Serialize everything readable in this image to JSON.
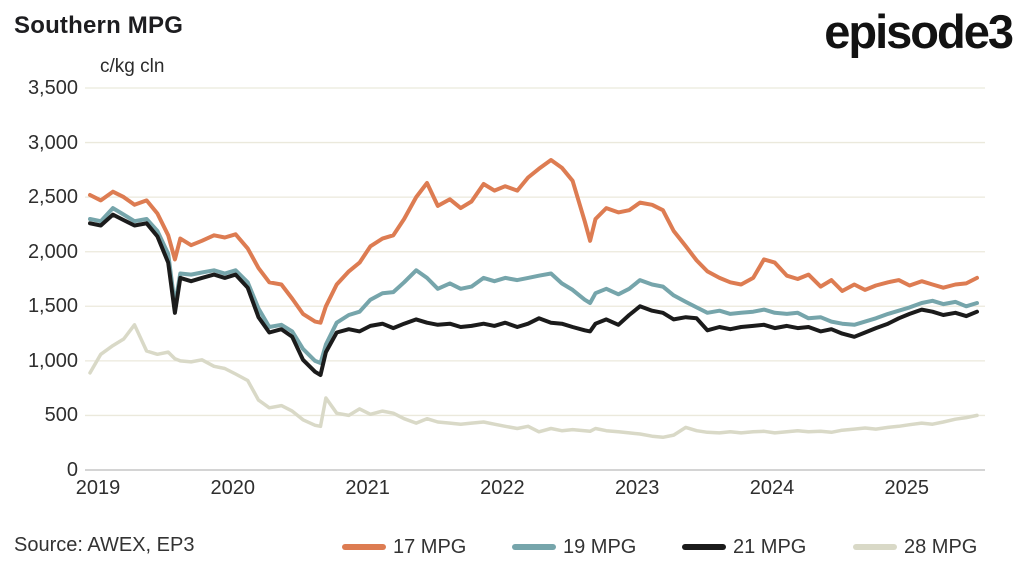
{
  "header": {
    "title": "Southern MPG",
    "logo": "episode3",
    "unit_label": "c/kg cln"
  },
  "footer": {
    "source": "Source: AWEX, EP3"
  },
  "colors": {
    "grid": "#ebe9dc",
    "axis": "#c6c6c6",
    "series_17": "#dd7c52",
    "series_19": "#76a5ab",
    "series_21": "#1b1b1b",
    "series_28": "#d9d9c7"
  },
  "chart_data": {
    "type": "line",
    "title": "Southern MPG",
    "ylabel": "c/kg cln",
    "xlabel": "",
    "ylim": [
      0,
      3500
    ],
    "xlim": [
      2018.95,
      2025.65
    ],
    "grid": "horizontal",
    "legend_position": "bottom",
    "yticks": [
      0,
      500,
      1000,
      1500,
      2000,
      2500,
      3000,
      3500
    ],
    "ytick_labels": [
      "0",
      "500",
      "1,000",
      "1,500",
      "2,000",
      "2,500",
      "3,000",
      "3,500"
    ],
    "xticks": [
      2019,
      2020,
      2021,
      2022,
      2023,
      2024,
      2025
    ],
    "xtick_labels": [
      "2019",
      "2020",
      "2021",
      "2022",
      "2023",
      "2024",
      "2025"
    ],
    "x": [
      2019.0,
      2019.08,
      2019.17,
      2019.25,
      2019.33,
      2019.42,
      2019.5,
      2019.58,
      2019.63,
      2019.67,
      2019.75,
      2019.83,
      2019.92,
      2020.0,
      2020.08,
      2020.17,
      2020.25,
      2020.33,
      2020.42,
      2020.5,
      2020.58,
      2020.67,
      2020.71,
      2020.75,
      2020.83,
      2020.92,
      2021.0,
      2021.08,
      2021.17,
      2021.25,
      2021.33,
      2021.42,
      2021.5,
      2021.58,
      2021.67,
      2021.75,
      2021.83,
      2021.92,
      2022.0,
      2022.08,
      2022.17,
      2022.25,
      2022.33,
      2022.42,
      2022.5,
      2022.58,
      2022.67,
      2022.71,
      2022.75,
      2022.83,
      2022.92,
      2023.0,
      2023.08,
      2023.17,
      2023.25,
      2023.33,
      2023.42,
      2023.5,
      2023.58,
      2023.67,
      2023.75,
      2023.83,
      2023.92,
      2024.0,
      2024.08,
      2024.17,
      2024.25,
      2024.33,
      2024.42,
      2024.5,
      2024.58,
      2024.67,
      2024.75,
      2024.83,
      2024.92,
      2025.0,
      2025.08,
      2025.17,
      2025.25,
      2025.33,
      2025.42,
      2025.5,
      2025.58
    ],
    "series": [
      {
        "name": "17 MPG",
        "color": "#dd7c52",
        "stroke_width": 4,
        "values": [
          2520,
          2470,
          2550,
          2500,
          2430,
          2470,
          2350,
          2150,
          1930,
          2120,
          2060,
          2100,
          2150,
          2130,
          2160,
          2030,
          1850,
          1720,
          1700,
          1570,
          1430,
          1360,
          1350,
          1500,
          1700,
          1820,
          1900,
          2050,
          2120,
          2150,
          2300,
          2500,
          2630,
          2420,
          2480,
          2400,
          2460,
          2620,
          2560,
          2600,
          2560,
          2680,
          2760,
          2840,
          2770,
          2650,
          2280,
          2100,
          2300,
          2400,
          2360,
          2380,
          2450,
          2430,
          2380,
          2190,
          2050,
          1920,
          1820,
          1760,
          1720,
          1700,
          1760,
          1930,
          1900,
          1780,
          1750,
          1790,
          1680,
          1740,
          1640,
          1700,
          1650,
          1690,
          1720,
          1740,
          1690,
          1730,
          1700,
          1670,
          1700,
          1710,
          1760
        ]
      },
      {
        "name": "19 MPG",
        "color": "#76a5ab",
        "stroke_width": 4,
        "values": [
          2300,
          2280,
          2400,
          2340,
          2280,
          2300,
          2190,
          1980,
          1510,
          1800,
          1790,
          1810,
          1830,
          1800,
          1830,
          1720,
          1480,
          1310,
          1330,
          1270,
          1110,
          1000,
          980,
          1150,
          1350,
          1420,
          1450,
          1560,
          1620,
          1630,
          1720,
          1830,
          1760,
          1660,
          1710,
          1660,
          1680,
          1760,
          1730,
          1760,
          1740,
          1760,
          1780,
          1800,
          1710,
          1650,
          1560,
          1530,
          1620,
          1660,
          1610,
          1660,
          1740,
          1700,
          1680,
          1600,
          1540,
          1490,
          1440,
          1460,
          1430,
          1440,
          1450,
          1470,
          1440,
          1430,
          1440,
          1390,
          1400,
          1360,
          1340,
          1330,
          1360,
          1390,
          1430,
          1460,
          1490,
          1530,
          1550,
          1520,
          1540,
          1500,
          1530
        ]
      },
      {
        "name": "21 MPG",
        "color": "#1b1b1b",
        "stroke_width": 4,
        "values": [
          2260,
          2240,
          2340,
          2290,
          2240,
          2260,
          2140,
          1900,
          1440,
          1760,
          1730,
          1760,
          1790,
          1760,
          1790,
          1670,
          1400,
          1260,
          1290,
          1220,
          1010,
          900,
          870,
          1080,
          1260,
          1290,
          1270,
          1320,
          1340,
          1300,
          1340,
          1380,
          1350,
          1330,
          1340,
          1310,
          1320,
          1340,
          1320,
          1350,
          1310,
          1340,
          1390,
          1350,
          1340,
          1310,
          1280,
          1270,
          1340,
          1380,
          1330,
          1420,
          1500,
          1460,
          1440,
          1380,
          1400,
          1390,
          1280,
          1310,
          1290,
          1310,
          1320,
          1330,
          1300,
          1320,
          1300,
          1310,
          1270,
          1290,
          1250,
          1220,
          1260,
          1300,
          1340,
          1390,
          1430,
          1470,
          1450,
          1420,
          1440,
          1410,
          1450
        ]
      },
      {
        "name": "28 MPG",
        "color": "#d9d9c7",
        "stroke_width": 3.5,
        "values": [
          890,
          1060,
          1140,
          1200,
          1330,
          1090,
          1060,
          1080,
          1020,
          1000,
          990,
          1010,
          950,
          930,
          880,
          820,
          640,
          570,
          590,
          540,
          460,
          410,
          400,
          660,
          520,
          500,
          560,
          510,
          540,
          520,
          470,
          430,
          470,
          440,
          430,
          420,
          430,
          440,
          420,
          400,
          380,
          400,
          350,
          380,
          360,
          370,
          360,
          355,
          380,
          360,
          350,
          340,
          330,
          310,
          300,
          320,
          390,
          360,
          345,
          340,
          350,
          340,
          350,
          355,
          340,
          350,
          360,
          350,
          355,
          345,
          365,
          375,
          385,
          375,
          390,
          400,
          415,
          430,
          420,
          440,
          465,
          480,
          500
        ]
      }
    ]
  }
}
